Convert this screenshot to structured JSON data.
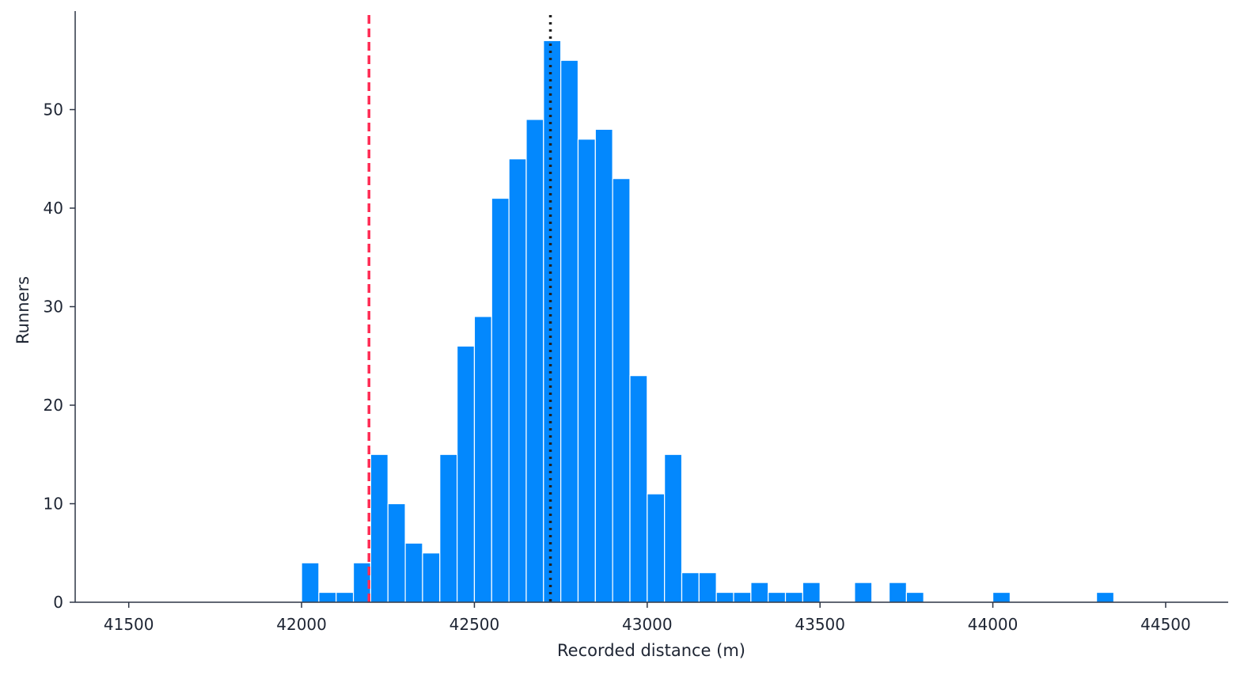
{
  "chart_data": {
    "type": "bar",
    "subtype": "histogram",
    "title": "",
    "xlabel": "Recorded distance (m)",
    "ylabel": "Runners",
    "xlim": [
      41345,
      44681
    ],
    "ylim": [
      0,
      60
    ],
    "xticks": [
      41500,
      42000,
      42500,
      43000,
      43500,
      44000,
      44500
    ],
    "yticks": [
      0,
      10,
      20,
      30,
      40,
      50
    ],
    "bin_width": 50,
    "bins": [
      {
        "start": 42000,
        "count": 4
      },
      {
        "start": 42050,
        "count": 1
      },
      {
        "start": 42100,
        "count": 1
      },
      {
        "start": 42150,
        "count": 4
      },
      {
        "start": 42200,
        "count": 15
      },
      {
        "start": 42250,
        "count": 10
      },
      {
        "start": 42300,
        "count": 6
      },
      {
        "start": 42350,
        "count": 5
      },
      {
        "start": 42400,
        "count": 15
      },
      {
        "start": 42450,
        "count": 26
      },
      {
        "start": 42500,
        "count": 29
      },
      {
        "start": 42550,
        "count": 41
      },
      {
        "start": 42600,
        "count": 45
      },
      {
        "start": 42650,
        "count": 49
      },
      {
        "start": 42700,
        "count": 57
      },
      {
        "start": 42750,
        "count": 55
      },
      {
        "start": 42800,
        "count": 47
      },
      {
        "start": 42850,
        "count": 48
      },
      {
        "start": 42900,
        "count": 43
      },
      {
        "start": 42950,
        "count": 23
      },
      {
        "start": 43000,
        "count": 11
      },
      {
        "start": 43050,
        "count": 15
      },
      {
        "start": 43100,
        "count": 3
      },
      {
        "start": 43150,
        "count": 3
      },
      {
        "start": 43200,
        "count": 1
      },
      {
        "start": 43250,
        "count": 1
      },
      {
        "start": 43300,
        "count": 2
      },
      {
        "start": 43350,
        "count": 1
      },
      {
        "start": 43400,
        "count": 1
      },
      {
        "start": 43450,
        "count": 2
      },
      {
        "start": 43600,
        "count": 2
      },
      {
        "start": 43700,
        "count": 2
      },
      {
        "start": 43750,
        "count": 1
      },
      {
        "start": 44000,
        "count": 1
      },
      {
        "start": 44300,
        "count": 1
      }
    ],
    "reference_lines": [
      {
        "x": 42195,
        "style": "dashed",
        "color": "#ff2d55"
      },
      {
        "x": 42720,
        "style": "dotted",
        "color": "#222222"
      }
    ],
    "bar_color": "#0388fd",
    "bar_edge_color": "#ffffff",
    "grid": false,
    "legend": "none"
  }
}
